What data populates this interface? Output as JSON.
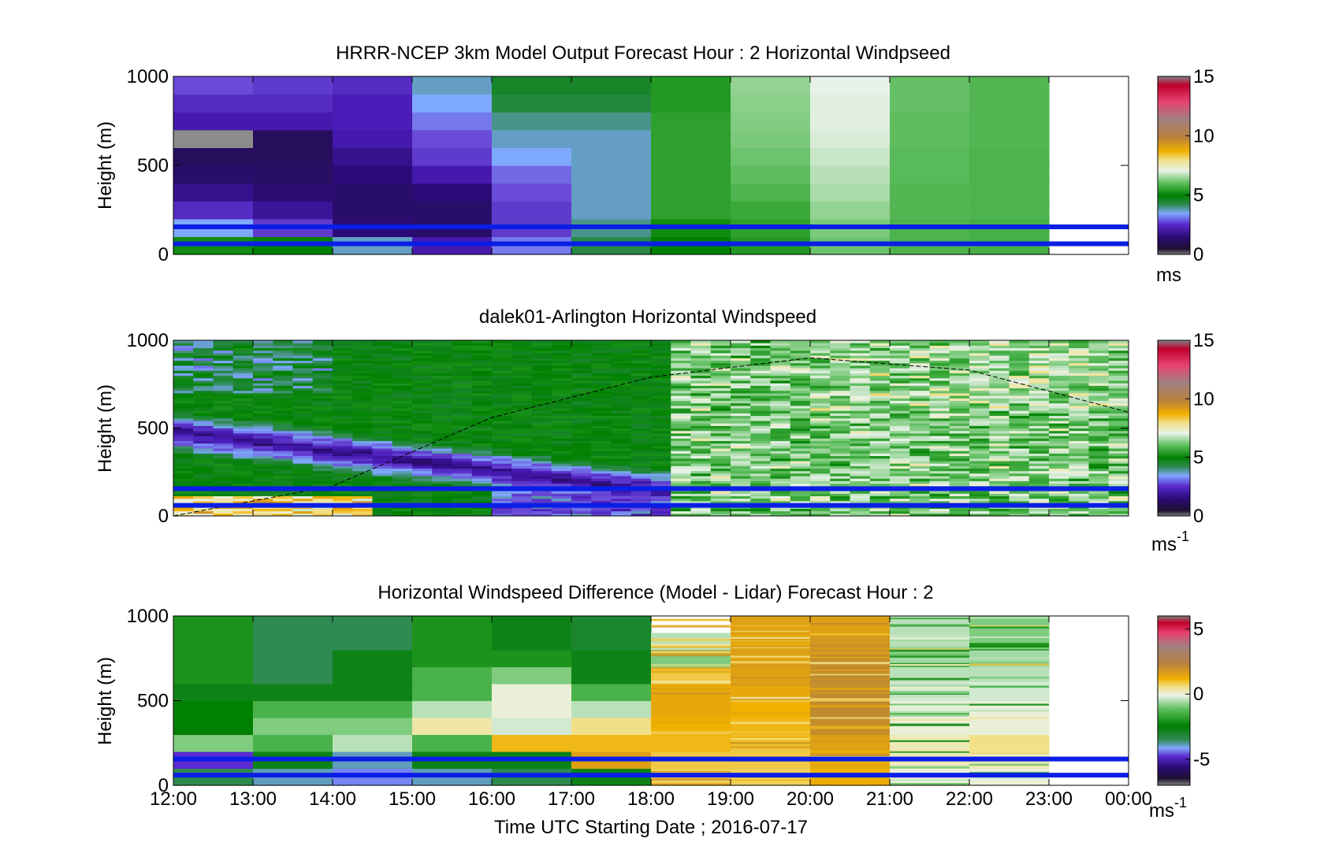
{
  "figure": {
    "xlabel": "Time UTC  Starting Date ; 2016-07-17",
    "x_ticks": [
      "12:00",
      "13:00",
      "14:00",
      "15:00",
      "16:00",
      "17:00",
      "18:00",
      "19:00",
      "20:00",
      "21:00",
      "22:00",
      "23:00",
      "00:00"
    ]
  },
  "chart_data": [
    {
      "type": "heatmap",
      "title": "HRRR-NCEP 3km Model Output   Forecast Hour : 2 Horizontal Windpseed",
      "ylabel": "Height (m)",
      "ylim": [
        0,
        1000
      ],
      "y_ticks": [
        "0",
        "500",
        "1000"
      ],
      "colorbar": {
        "ticks": [
          "0",
          "5",
          "10",
          "15"
        ],
        "unit": "ms",
        "range": [
          0,
          15
        ]
      },
      "x_hours": [
        "12:00",
        "13:00",
        "14:00",
        "15:00",
        "16:00",
        "17:00",
        "18:00",
        "19:00",
        "20:00",
        "21:00",
        "22:00"
      ],
      "reference_lines_height_m": [
        60,
        155
      ],
      "approx_values_ms_low_to_high": [
        [
          4.5,
          2.8,
          1.8,
          1.2,
          0.8,
          0.6,
          7.2,
          1.5,
          1.8,
          2.2
        ],
        [
          4.2,
          2.0,
          1.3,
          0.9,
          0.7,
          0.6,
          0.6,
          1.5,
          1.8,
          2.0
        ],
        [
          3.0,
          1.0,
          0.8,
          0.8,
          1.0,
          1.2,
          1.5,
          1.6,
          1.6,
          1.8
        ],
        [
          1.5,
          0.8,
          0.8,
          1.0,
          1.5,
          2.0,
          2.2,
          2.5,
          2.8,
          3.0
        ],
        [
          2.5,
          2.0,
          2.0,
          2.2,
          2.4,
          2.8,
          3.0,
          3.2,
          3.6,
          3.8
        ],
        [
          3.5,
          3.2,
          3.0,
          3.0,
          3.0,
          3.0,
          3.0,
          3.2,
          3.6,
          3.8
        ],
        [
          4.2,
          4.5,
          5.0,
          5.0,
          5.0,
          5.0,
          5.0,
          5.0,
          4.8,
          4.8
        ],
        [
          4.8,
          5.0,
          5.2,
          5.5,
          5.8,
          6.0,
          6.2,
          6.3,
          6.4,
          6.5
        ],
        [
          6.0,
          6.2,
          6.5,
          6.8,
          7.0,
          7.2,
          7.4,
          7.5,
          7.5,
          7.6
        ],
        [
          5.5,
          5.5,
          5.6,
          5.6,
          5.7,
          5.7,
          5.8,
          5.8,
          5.9,
          5.9
        ],
        [
          5.4,
          5.4,
          5.5,
          5.5,
          5.5,
          5.5,
          5.6,
          5.6,
          5.6,
          5.6
        ]
      ]
    },
    {
      "type": "heatmap",
      "title": "dalek01-Arlington  Horizontal Windspeed",
      "ylabel": "Height (m)",
      "ylim": [
        0,
        1000
      ],
      "y_ticks": [
        "0",
        "500",
        "1000"
      ],
      "colorbar": {
        "ticks": [
          "0",
          "5",
          "10",
          "15"
        ],
        "unit": "ms",
        "unit_exp": "-1",
        "range": [
          0,
          15
        ]
      },
      "reference_lines_height_m": [
        60,
        155
      ],
      "dashed_curve_height_m": [
        {
          "t": "12:00",
          "h": 0
        },
        {
          "t": "14:00",
          "h": 170
        },
        {
          "t": "16:00",
          "h": 560
        },
        {
          "t": "18:00",
          "h": 790
        },
        {
          "t": "20:00",
          "h": 900
        },
        {
          "t": "22:00",
          "h": 830
        },
        {
          "t": "00:00",
          "h": 590
        }
      ]
    },
    {
      "type": "heatmap",
      "title": "Horizontal Windspeed Difference (Model - Lidar) Forecast Hour : 2",
      "ylabel": "Height (m)",
      "ylim": [
        0,
        1000
      ],
      "y_ticks": [
        "0",
        "500",
        "1000"
      ],
      "colorbar": {
        "ticks": [
          "-5",
          "0",
          "5"
        ],
        "unit": "ms",
        "unit_exp": "-1",
        "range": [
          -7,
          6
        ]
      },
      "x_hours": [
        "12:00",
        "13:00",
        "14:00",
        "15:00",
        "16:00",
        "17:00",
        "18:00",
        "19:00",
        "20:00",
        "21:00",
        "22:00"
      ],
      "reference_lines_height_m": [
        60,
        155
      ],
      "approx_diff_ms_low_to_high": [
        [
          -3.5,
          -5.0,
          -1.5,
          -2.8,
          -2.8,
          -3.0,
          -2.5,
          -2.5,
          -2.5,
          -2.5
        ],
        [
          -4.0,
          -3.0,
          -2.0,
          -1.5,
          -2.0,
          -3.0,
          -3.5,
          -3.5,
          -3.5,
          -3.5
        ],
        [
          -4.5,
          -4.0,
          -1.0,
          -1.5,
          -2.0,
          -3.0,
          -3.0,
          -3.0,
          -3.5,
          -3.5
        ],
        [
          -4.0,
          -3.0,
          -2.0,
          -0.2,
          -1.0,
          -2.0,
          -2.0,
          -2.5,
          -2.5,
          -2.5
        ],
        [
          -3.5,
          -3.0,
          0.5,
          -0.8,
          -0.5,
          -0.5,
          -1.5,
          -2.5,
          -3.0,
          -3.0
        ],
        [
          -3.0,
          1.0,
          0.5,
          0.0,
          -1.0,
          -2.0,
          -3.0,
          -3.0,
          -3.2,
          -3.2
        ],
        [
          0.2,
          0.3,
          0.5,
          0.6,
          0.8,
          0.8,
          0.3,
          -1.5,
          -1.0,
          null
        ],
        [
          0.2,
          0.3,
          0.4,
          0.5,
          0.6,
          0.8,
          1.0,
          1.0,
          1.0,
          1.0
        ],
        [
          0.6,
          0.8,
          1.0,
          1.5,
          1.6,
          1.6,
          1.6,
          1.5,
          1.2,
          1.0
        ],
        [
          -0.5,
          -0.3,
          -0.3,
          -0.5,
          -0.5,
          -0.8,
          -1.0,
          -1.2,
          -1.0,
          -1.0
        ],
        [
          -0.5,
          -0.3,
          0.0,
          -0.5,
          -0.5,
          -0.8,
          -1.0,
          -1.2,
          -1.5,
          -1.5
        ]
      ]
    }
  ]
}
